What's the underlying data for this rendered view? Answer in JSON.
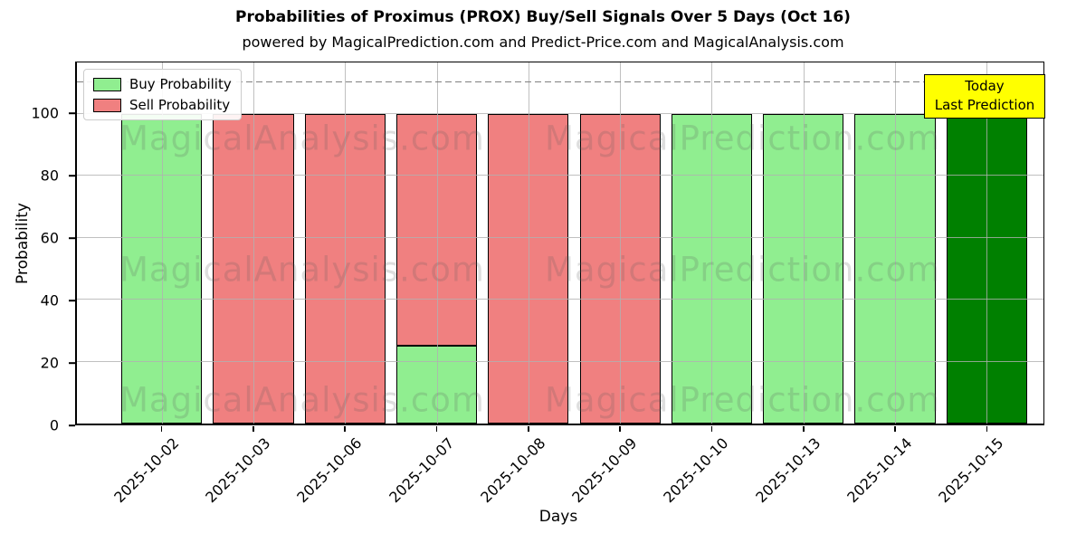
{
  "chart_data": {
    "type": "bar",
    "stacked": true,
    "title": "Probabilities of Proximus (PROX) Buy/Sell Signals Over 5 Days (Oct 16)",
    "subtitle": "powered by MagicalPrediction.com and Predict-Price.com and MagicalAnalysis.com",
    "xlabel": "Days",
    "ylabel": "Probability",
    "categories": [
      "2025-10-02",
      "2025-10-03",
      "2025-10-06",
      "2025-10-07",
      "2025-10-08",
      "2025-10-09",
      "2025-10-10",
      "2025-10-13",
      "2025-10-14",
      "2025-10-15"
    ],
    "series": [
      {
        "name": "Buy Probability",
        "color": "#90ee90",
        "values": [
          100,
          0,
          0,
          25,
          0,
          0,
          100,
          100,
          100,
          100
        ]
      },
      {
        "name": "Sell Probability",
        "color": "#f08080",
        "values": [
          0,
          100,
          100,
          75,
          100,
          100,
          0,
          0,
          0,
          0
        ]
      }
    ],
    "today_index": 9,
    "today_buy_color": "#008000",
    "bar_edge_color": "#000000",
    "ylim": [
      0,
      116.5
    ],
    "yticks": [
      0,
      20,
      40,
      60,
      80,
      100
    ],
    "grid": true,
    "gridline_color": "#b0b0b0",
    "dashed_line_y": 110,
    "dashed_line_color": "#7f7f7f",
    "legend_position": "upper-left",
    "annotation": {
      "lines": [
        "Today",
        "Last Prediction"
      ],
      "bg_color": "#ffff00"
    },
    "watermarks": {
      "left_text": "MagicalAnalysis.com",
      "right_text": "MagicalPrediction.com",
      "rows": 3
    }
  }
}
